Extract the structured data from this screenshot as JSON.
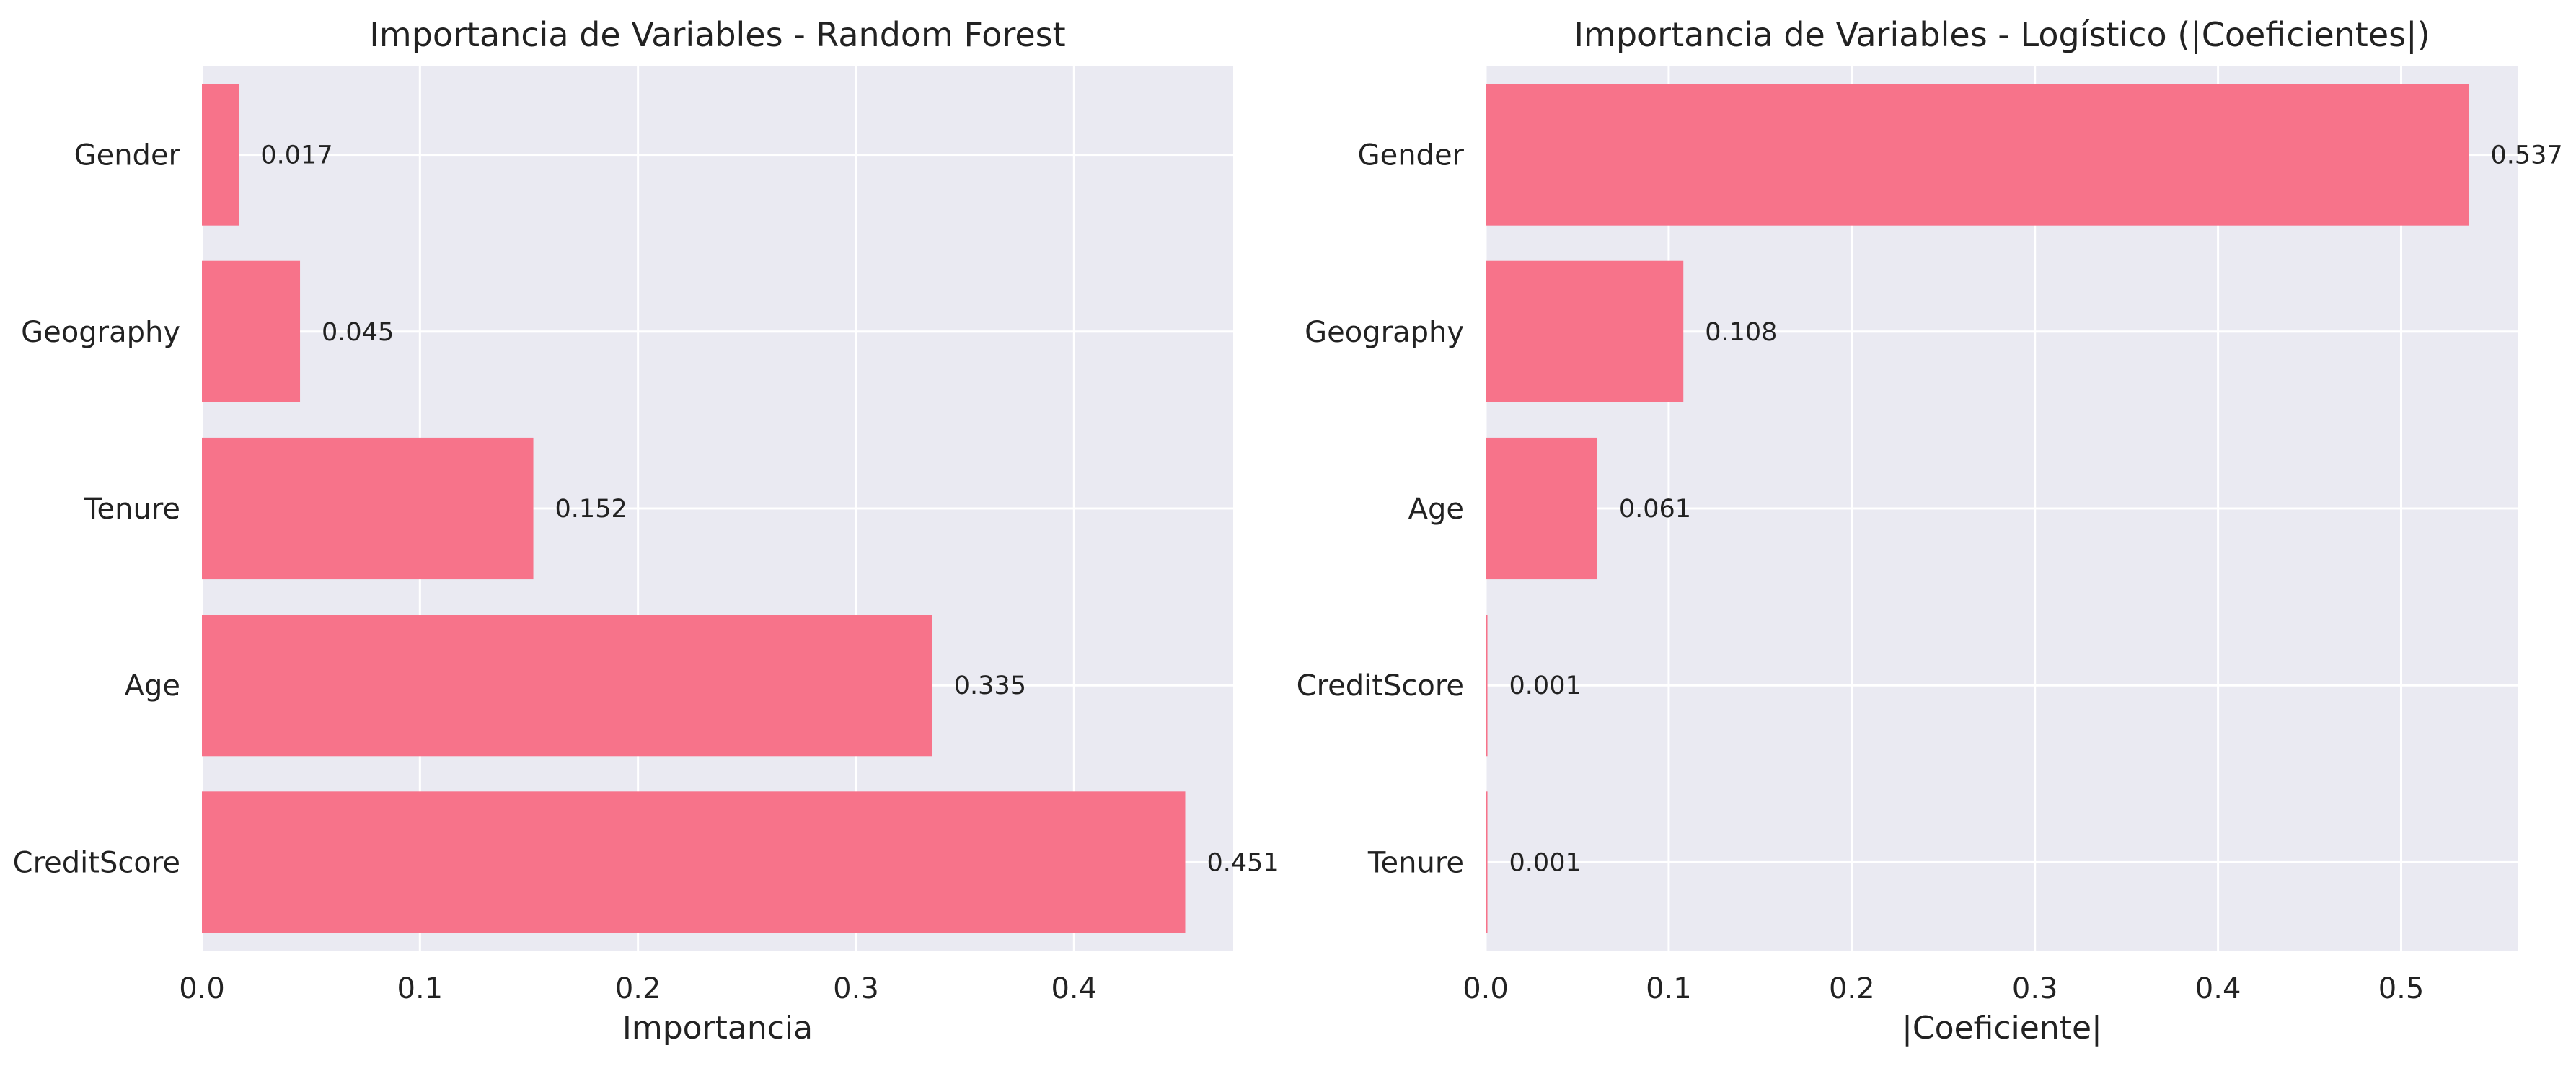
{
  "chart_data": [
    {
      "type": "bar",
      "orientation": "horizontal",
      "title": "Importancia de Variables - Random Forest",
      "xlabel": "Importancia",
      "ylabel": "",
      "categories": [
        "Gender",
        "Geography",
        "Tenure",
        "Age",
        "CreditScore"
      ],
      "values": [
        0.017,
        0.045,
        0.152,
        0.335,
        0.451
      ],
      "value_labels": [
        "0.017",
        "0.045",
        "0.152",
        "0.335",
        "0.451"
      ],
      "xlim": [
        0,
        0.473
      ],
      "xticks": [
        0,
        0.1,
        0.2,
        0.3,
        0.4
      ],
      "xtick_labels": [
        "0.0",
        "0.1",
        "0.2",
        "0.3",
        "0.4"
      ],
      "grid": true,
      "bar_color": "#f7738a",
      "background_color": "#eaeaf2"
    },
    {
      "type": "bar",
      "orientation": "horizontal",
      "title": "Importancia de Variables - Logístico (|Coeficientes|)",
      "xlabel": "|Coeficiente|",
      "ylabel": "",
      "categories": [
        "Gender",
        "Geography",
        "Age",
        "CreditScore",
        "Tenure"
      ],
      "values": [
        0.537,
        0.108,
        0.061,
        0.001,
        0.001
      ],
      "value_labels": [
        "0.537",
        "0.108",
        "0.061",
        "0.001",
        "0.001"
      ],
      "xlim": [
        0,
        0.564
      ],
      "xticks": [
        0,
        0.1,
        0.2,
        0.3,
        0.4,
        0.5
      ],
      "xtick_labels": [
        "0.0",
        "0.1",
        "0.2",
        "0.3",
        "0.4",
        "0.5"
      ],
      "grid": true,
      "bar_color": "#f7738a",
      "background_color": "#eaeaf2"
    }
  ]
}
